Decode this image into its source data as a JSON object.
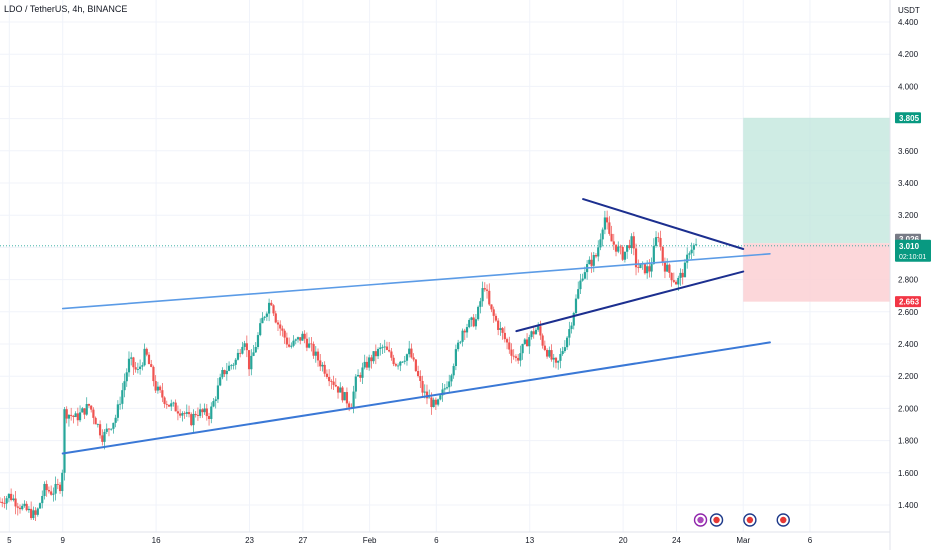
{
  "chart_data": {
    "type": "candlestick",
    "title": "LDO / TetherUS, 4h, BINANCE",
    "ylabel": "USDT",
    "ylim": [
      1.3,
      4.45
    ],
    "grid": true,
    "y_ticks": [
      "4.400",
      "4.200",
      "4.000",
      "3.800",
      "3.600",
      "3.400",
      "3.200",
      "3.000",
      "2.800",
      "2.600",
      "2.400",
      "2.200",
      "2.000",
      "1.800",
      "1.600",
      "1.400"
    ],
    "y_tick_values": [
      4.4,
      4.2,
      4.0,
      3.8,
      3.6,
      3.4,
      3.2,
      3.0,
      2.8,
      2.6,
      2.4,
      2.2,
      2.0,
      1.8,
      1.6,
      1.4
    ],
    "x_ticks": [
      "5",
      "9",
      "16",
      "23",
      "27",
      "Feb",
      "6",
      "13",
      "20",
      "24",
      "Mar",
      "6"
    ],
    "x_tick_days": [
      5,
      9,
      16,
      23,
      27,
      32,
      37,
      44,
      51,
      55,
      60,
      65
    ],
    "x_range_days": [
      4.3,
      71
    ],
    "price_labels": {
      "target": "3.805",
      "high_mark": "3.026",
      "current": "3.010",
      "countdown": "02:10:01",
      "stop": "2.663"
    },
    "levels": {
      "target": 3.805,
      "entry": 3.026,
      "current": 3.01,
      "stop": 2.663
    },
    "position_box": {
      "start_day": 60.0,
      "end_day": 71
    },
    "trendlines": [
      {
        "name": "channel-upper",
        "color": "#5b9be6",
        "width": 1.6,
        "from": [
          9,
          2.62
        ],
        "to": [
          62,
          2.96
        ]
      },
      {
        "name": "channel-lower",
        "color": "#3a78d6",
        "width": 2.0,
        "from": [
          9,
          1.72
        ],
        "to": [
          62,
          2.41
        ]
      },
      {
        "name": "triangle-upper",
        "color": "#1c2f8f",
        "width": 2.0,
        "from": [
          48,
          3.3
        ],
        "to": [
          60,
          2.99
        ]
      },
      {
        "name": "triangle-lower",
        "color": "#1c2f8f",
        "width": 2.0,
        "from": [
          43,
          2.48
        ],
        "to": [
          60,
          2.85
        ]
      }
    ],
    "path_points": [
      [
        4.3,
        1.42
      ],
      [
        5,
        1.46
      ],
      [
        6,
        1.38
      ],
      [
        7,
        1.33
      ],
      [
        7.6,
        1.5
      ],
      [
        8.2,
        1.48
      ],
      [
        8.8,
        1.52
      ],
      [
        9,
        1.64
      ],
      [
        9.1,
        1.98
      ],
      [
        10,
        1.94
      ],
      [
        11,
        2.02
      ],
      [
        11.6,
        1.9
      ],
      [
        12,
        1.82
      ],
      [
        13,
        1.95
      ],
      [
        14,
        2.3
      ],
      [
        14.6,
        2.22
      ],
      [
        15.2,
        2.35
      ],
      [
        16,
        2.12
      ],
      [
        17,
        2.02
      ],
      [
        18,
        1.98
      ],
      [
        18.6,
        1.92
      ],
      [
        19,
        1.98
      ],
      [
        20,
        1.96
      ],
      [
        21,
        2.22
      ],
      [
        22,
        2.3
      ],
      [
        22.6,
        2.45
      ],
      [
        23,
        2.25
      ],
      [
        24,
        2.56
      ],
      [
        24.6,
        2.68
      ],
      [
        25,
        2.55
      ],
      [
        26,
        2.38
      ],
      [
        27,
        2.45
      ],
      [
        28,
        2.32
      ],
      [
        29,
        2.2
      ],
      [
        30,
        2.08
      ],
      [
        30.6,
        2.02
      ],
      [
        31,
        2.18
      ],
      [
        32,
        2.3
      ],
      [
        33,
        2.38
      ],
      [
        34,
        2.28
      ],
      [
        35,
        2.35
      ],
      [
        36,
        2.1
      ],
      [
        37,
        2.0
      ],
      [
        38,
        2.2
      ],
      [
        39,
        2.5
      ],
      [
        40,
        2.55
      ],
      [
        40.6,
        2.78
      ],
      [
        41,
        2.62
      ],
      [
        42,
        2.45
      ],
      [
        43,
        2.3
      ],
      [
        44,
        2.45
      ],
      [
        44.6,
        2.5
      ],
      [
        45,
        2.4
      ],
      [
        46,
        2.25
      ],
      [
        47,
        2.5
      ],
      [
        47.6,
        2.72
      ],
      [
        48,
        2.85
      ],
      [
        49,
        2.95
      ],
      [
        49.6,
        3.2
      ],
      [
        50,
        3.05
      ],
      [
        51,
        2.95
      ],
      [
        51.6,
        3.05
      ],
      [
        52,
        2.88
      ],
      [
        53,
        2.86
      ],
      [
        53.6,
        3.1
      ],
      [
        54,
        2.9
      ],
      [
        55,
        2.78
      ],
      [
        55.6,
        2.86
      ],
      [
        56,
        3.0
      ],
      [
        56.6,
        3.01
      ]
    ]
  }
}
